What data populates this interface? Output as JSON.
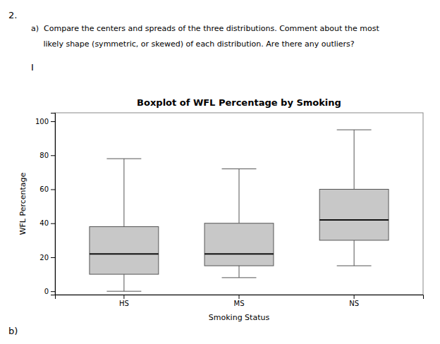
{
  "page": {
    "number": "2.",
    "header": [
      "a)  Compare the centers and spreads of the three distributions. Comment about the most",
      "     likely shape (symmetric, or skewed) of each distribution. Are there any outliers?"
    ],
    "cursor": "I",
    "footer": "b)"
  },
  "chart_data": {
    "type": "box",
    "title": "Boxplot of WFL Percentage by Smoking",
    "x_label": "Smoking Status",
    "y_label": "WFL Percentage",
    "categories": [
      "HS",
      "MS",
      "NS"
    ],
    "boxes": [
      {
        "q1": 10,
        "median": 22,
        "q3": 38,
        "whislo": 0,
        "whishi": 78
      },
      {
        "q1": 15,
        "median": 22,
        "q3": 40,
        "whislo": 8,
        "whishi": 72
      },
      {
        "q1": 30,
        "median": 42,
        "q3": 60,
        "whislo": 15,
        "whishi": 95
      }
    ],
    "color": "#c8c8c8",
    "ylim": [
      -2,
      105
    ],
    "yticks": [
      0,
      20,
      40,
      60,
      80,
      100
    ]
  }
}
